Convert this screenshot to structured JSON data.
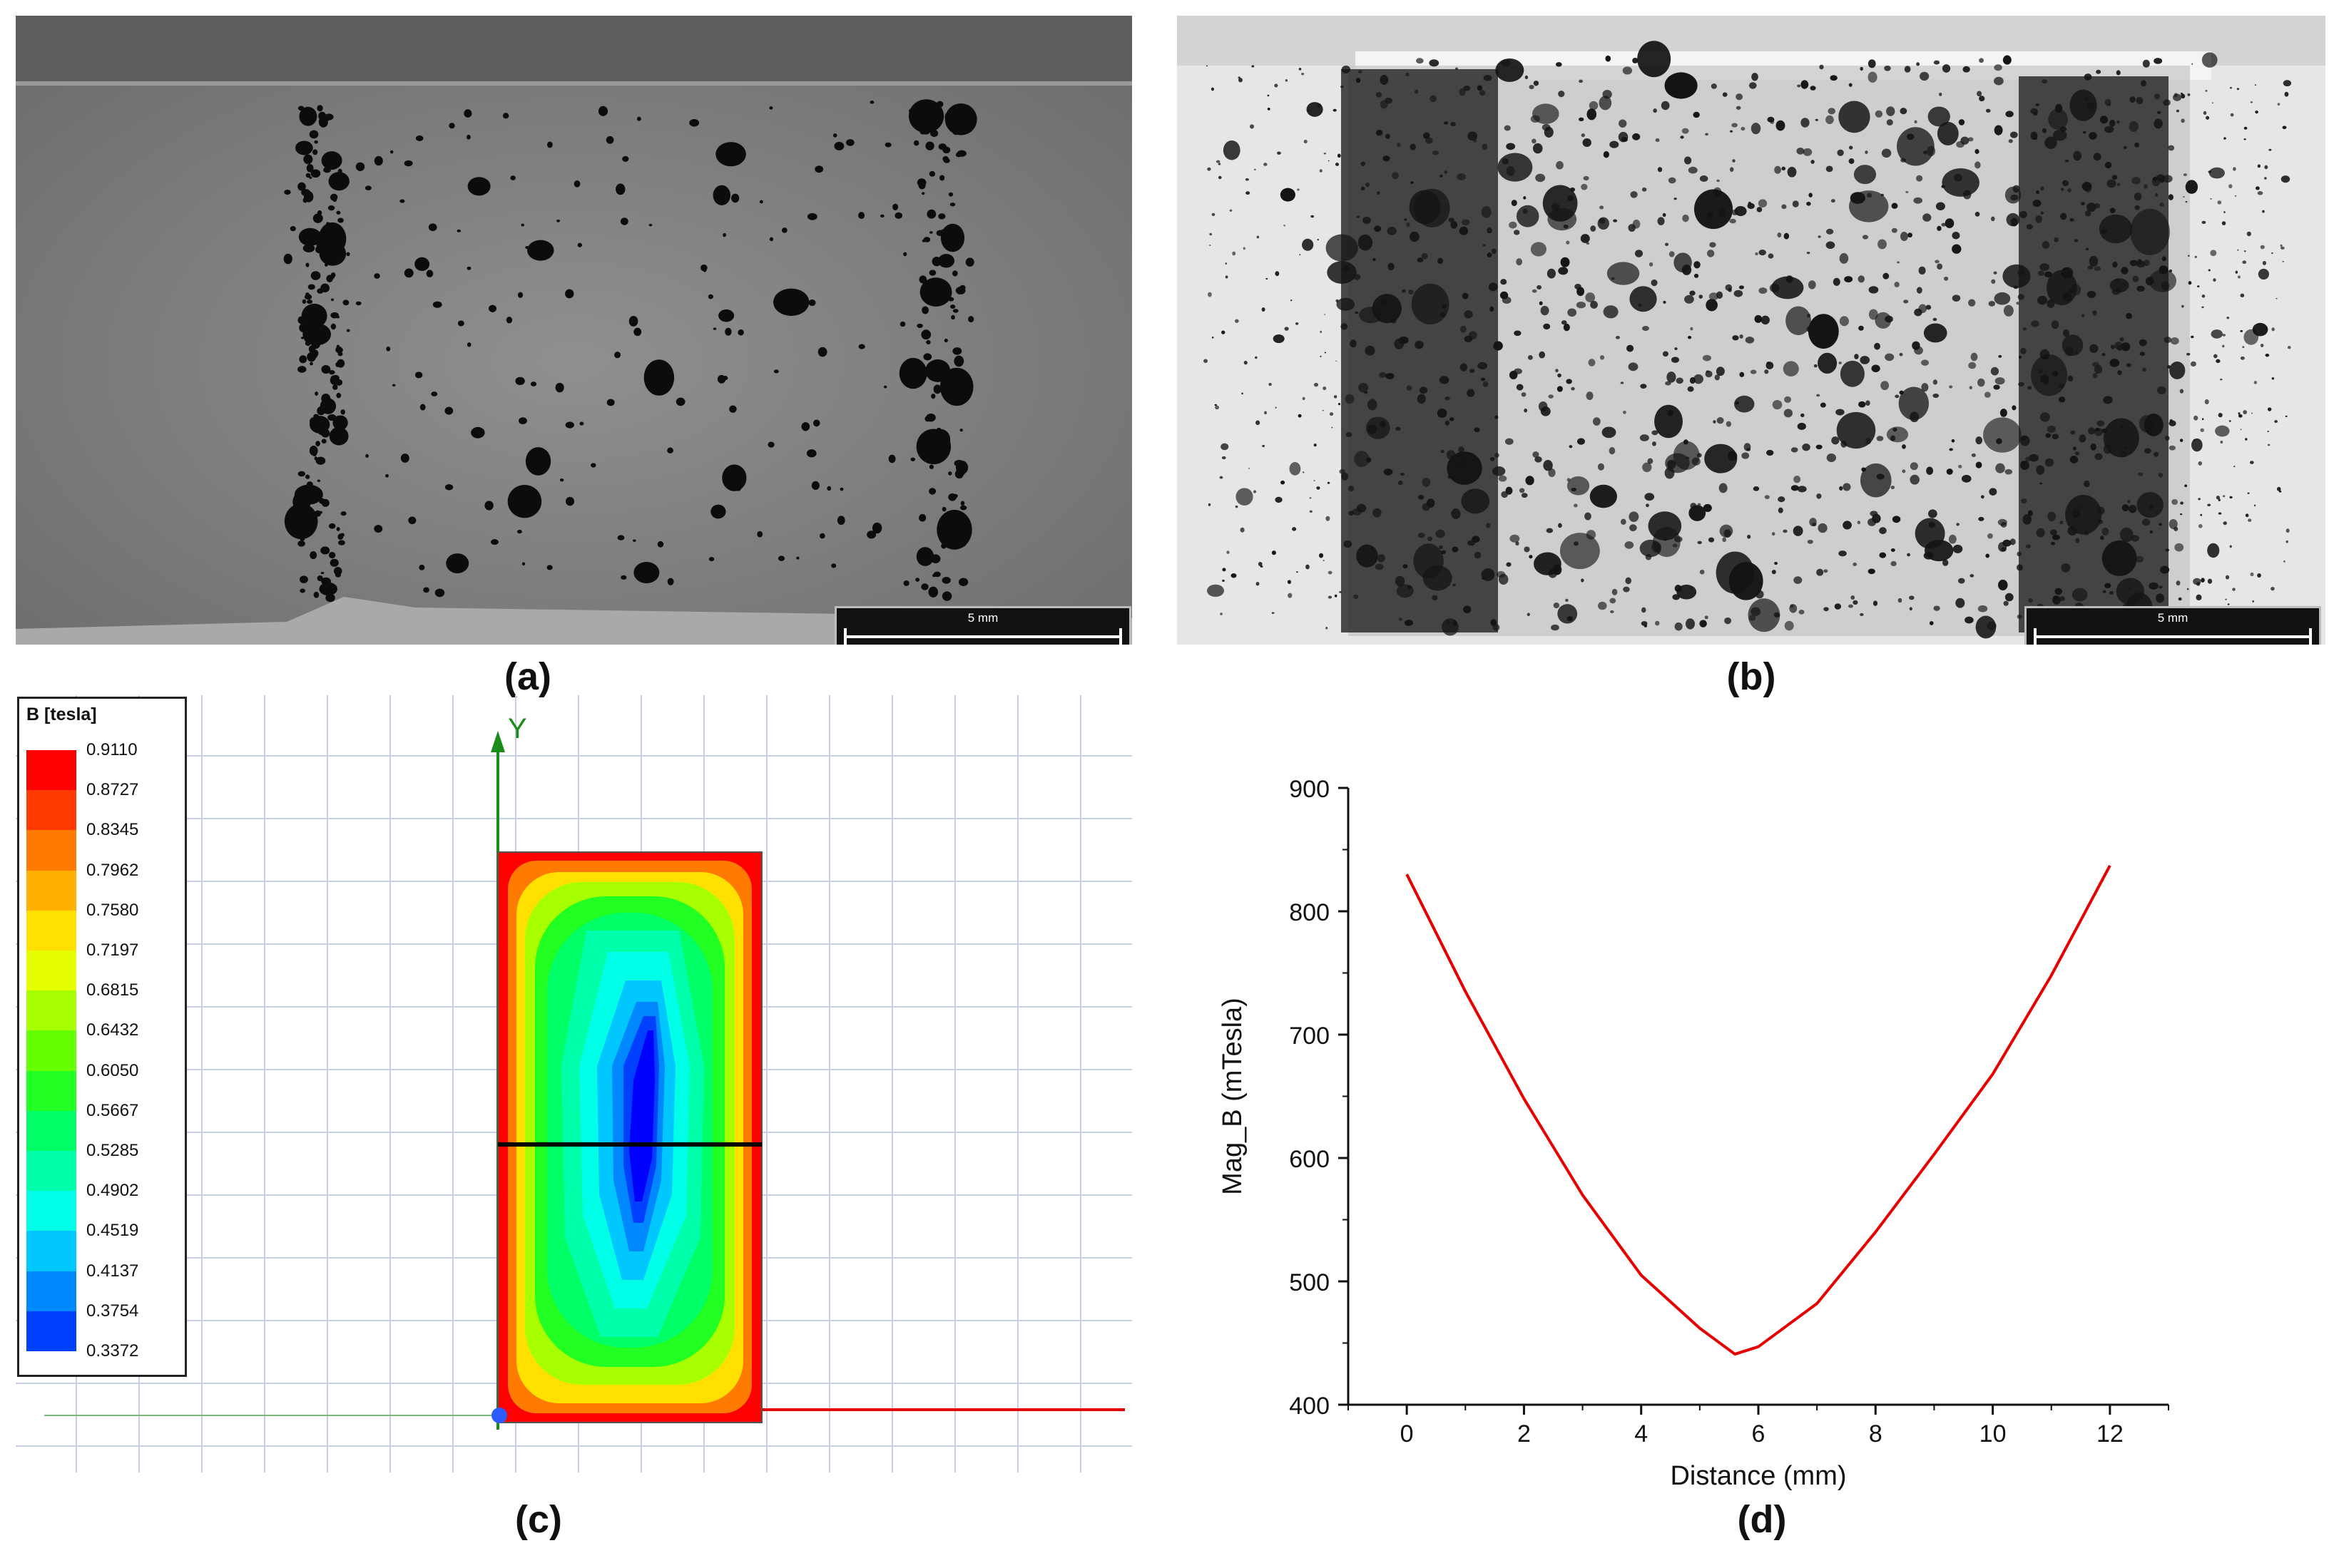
{
  "figure": {
    "panels": [
      {
        "label": "(a)",
        "scale_bar_text": "5 mm"
      },
      {
        "label": "(b)",
        "scale_bar_text": "5 mm"
      },
      {
        "label": "(c)"
      },
      {
        "label": "(d)"
      }
    ]
  },
  "field_plot": {
    "legend_title": "B [tesla]",
    "legend_values": [
      "0.9110",
      "0.8727",
      "0.8345",
      "0.7962",
      "0.7580",
      "0.7197",
      "0.6815",
      "0.6432",
      "0.6050",
      "0.5667",
      "0.5285",
      "0.4902",
      "0.4519",
      "0.4137",
      "0.3754",
      "0.3372"
    ],
    "legend_colors": [
      "#ff0000",
      "#ff3a00",
      "#ff7a00",
      "#ffb000",
      "#ffe000",
      "#e6ff00",
      "#a8ff00",
      "#66ff00",
      "#22ff22",
      "#00ff66",
      "#00ffaa",
      "#00ffe6",
      "#00c8ff",
      "#0088ff",
      "#0040ff",
      "#0000ff"
    ],
    "axis_y_label": "Y"
  },
  "chart_data": {
    "type": "line",
    "title": "",
    "xlabel": "Distance (mm)",
    "ylabel": "Mag_B (mTesla)",
    "xlim": [
      -1,
      13
    ],
    "ylim": [
      400,
      900
    ],
    "xticks": [
      0,
      2,
      4,
      6,
      8,
      10,
      12
    ],
    "yticks": [
      400,
      500,
      600,
      700,
      800,
      900
    ],
    "grid": false,
    "series": [
      {
        "color": "#e60000",
        "x": [
          0,
          1,
          2,
          3,
          4,
          5,
          5.6,
          6,
          7,
          8,
          9,
          10,
          11,
          12
        ],
        "y": [
          830,
          735,
          648,
          570,
          505,
          462,
          441,
          447,
          482,
          540,
          603,
          668,
          748,
          837
        ]
      }
    ]
  }
}
